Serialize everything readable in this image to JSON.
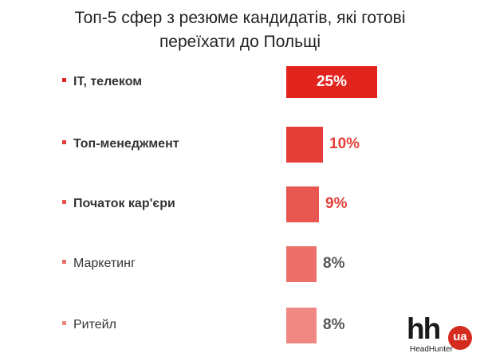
{
  "chart_data": {
    "type": "bar",
    "orientation": "horizontal",
    "title": "Топ-5 сфер з резюме кандидатів, які готові переїхати до Польщі",
    "title_lines": [
      "Топ-5 сфер з резюме кандидатів, які готові",
      "переїхати до Польщі"
    ],
    "categories": [
      "IT, телеком",
      "Топ-менеджмент",
      "Початок кар'єри",
      "Маркетинг",
      "Ритейл"
    ],
    "values": [
      25,
      10,
      9,
      8,
      8
    ],
    "value_labels": [
      "25%",
      "10%",
      "9%",
      "8%",
      "8%"
    ],
    "unit": "%",
    "bar_colors": [
      "#e2241f",
      "#e53e38",
      "#e85650",
      "#ec6f6a",
      "#ef8782"
    ],
    "value_label_colors": [
      "#ffffff",
      "#e53e38",
      "#e53e38",
      "#555555",
      "#555555"
    ],
    "label_bold": [
      true,
      true,
      true,
      false,
      false
    ],
    "xlim": [
      0,
      25
    ],
    "grid": false,
    "legend": "none"
  },
  "logo": {
    "text": "hh",
    "badge": "ua",
    "subtitle": "HeadHunter",
    "badge_color": "#d52b1e"
  }
}
